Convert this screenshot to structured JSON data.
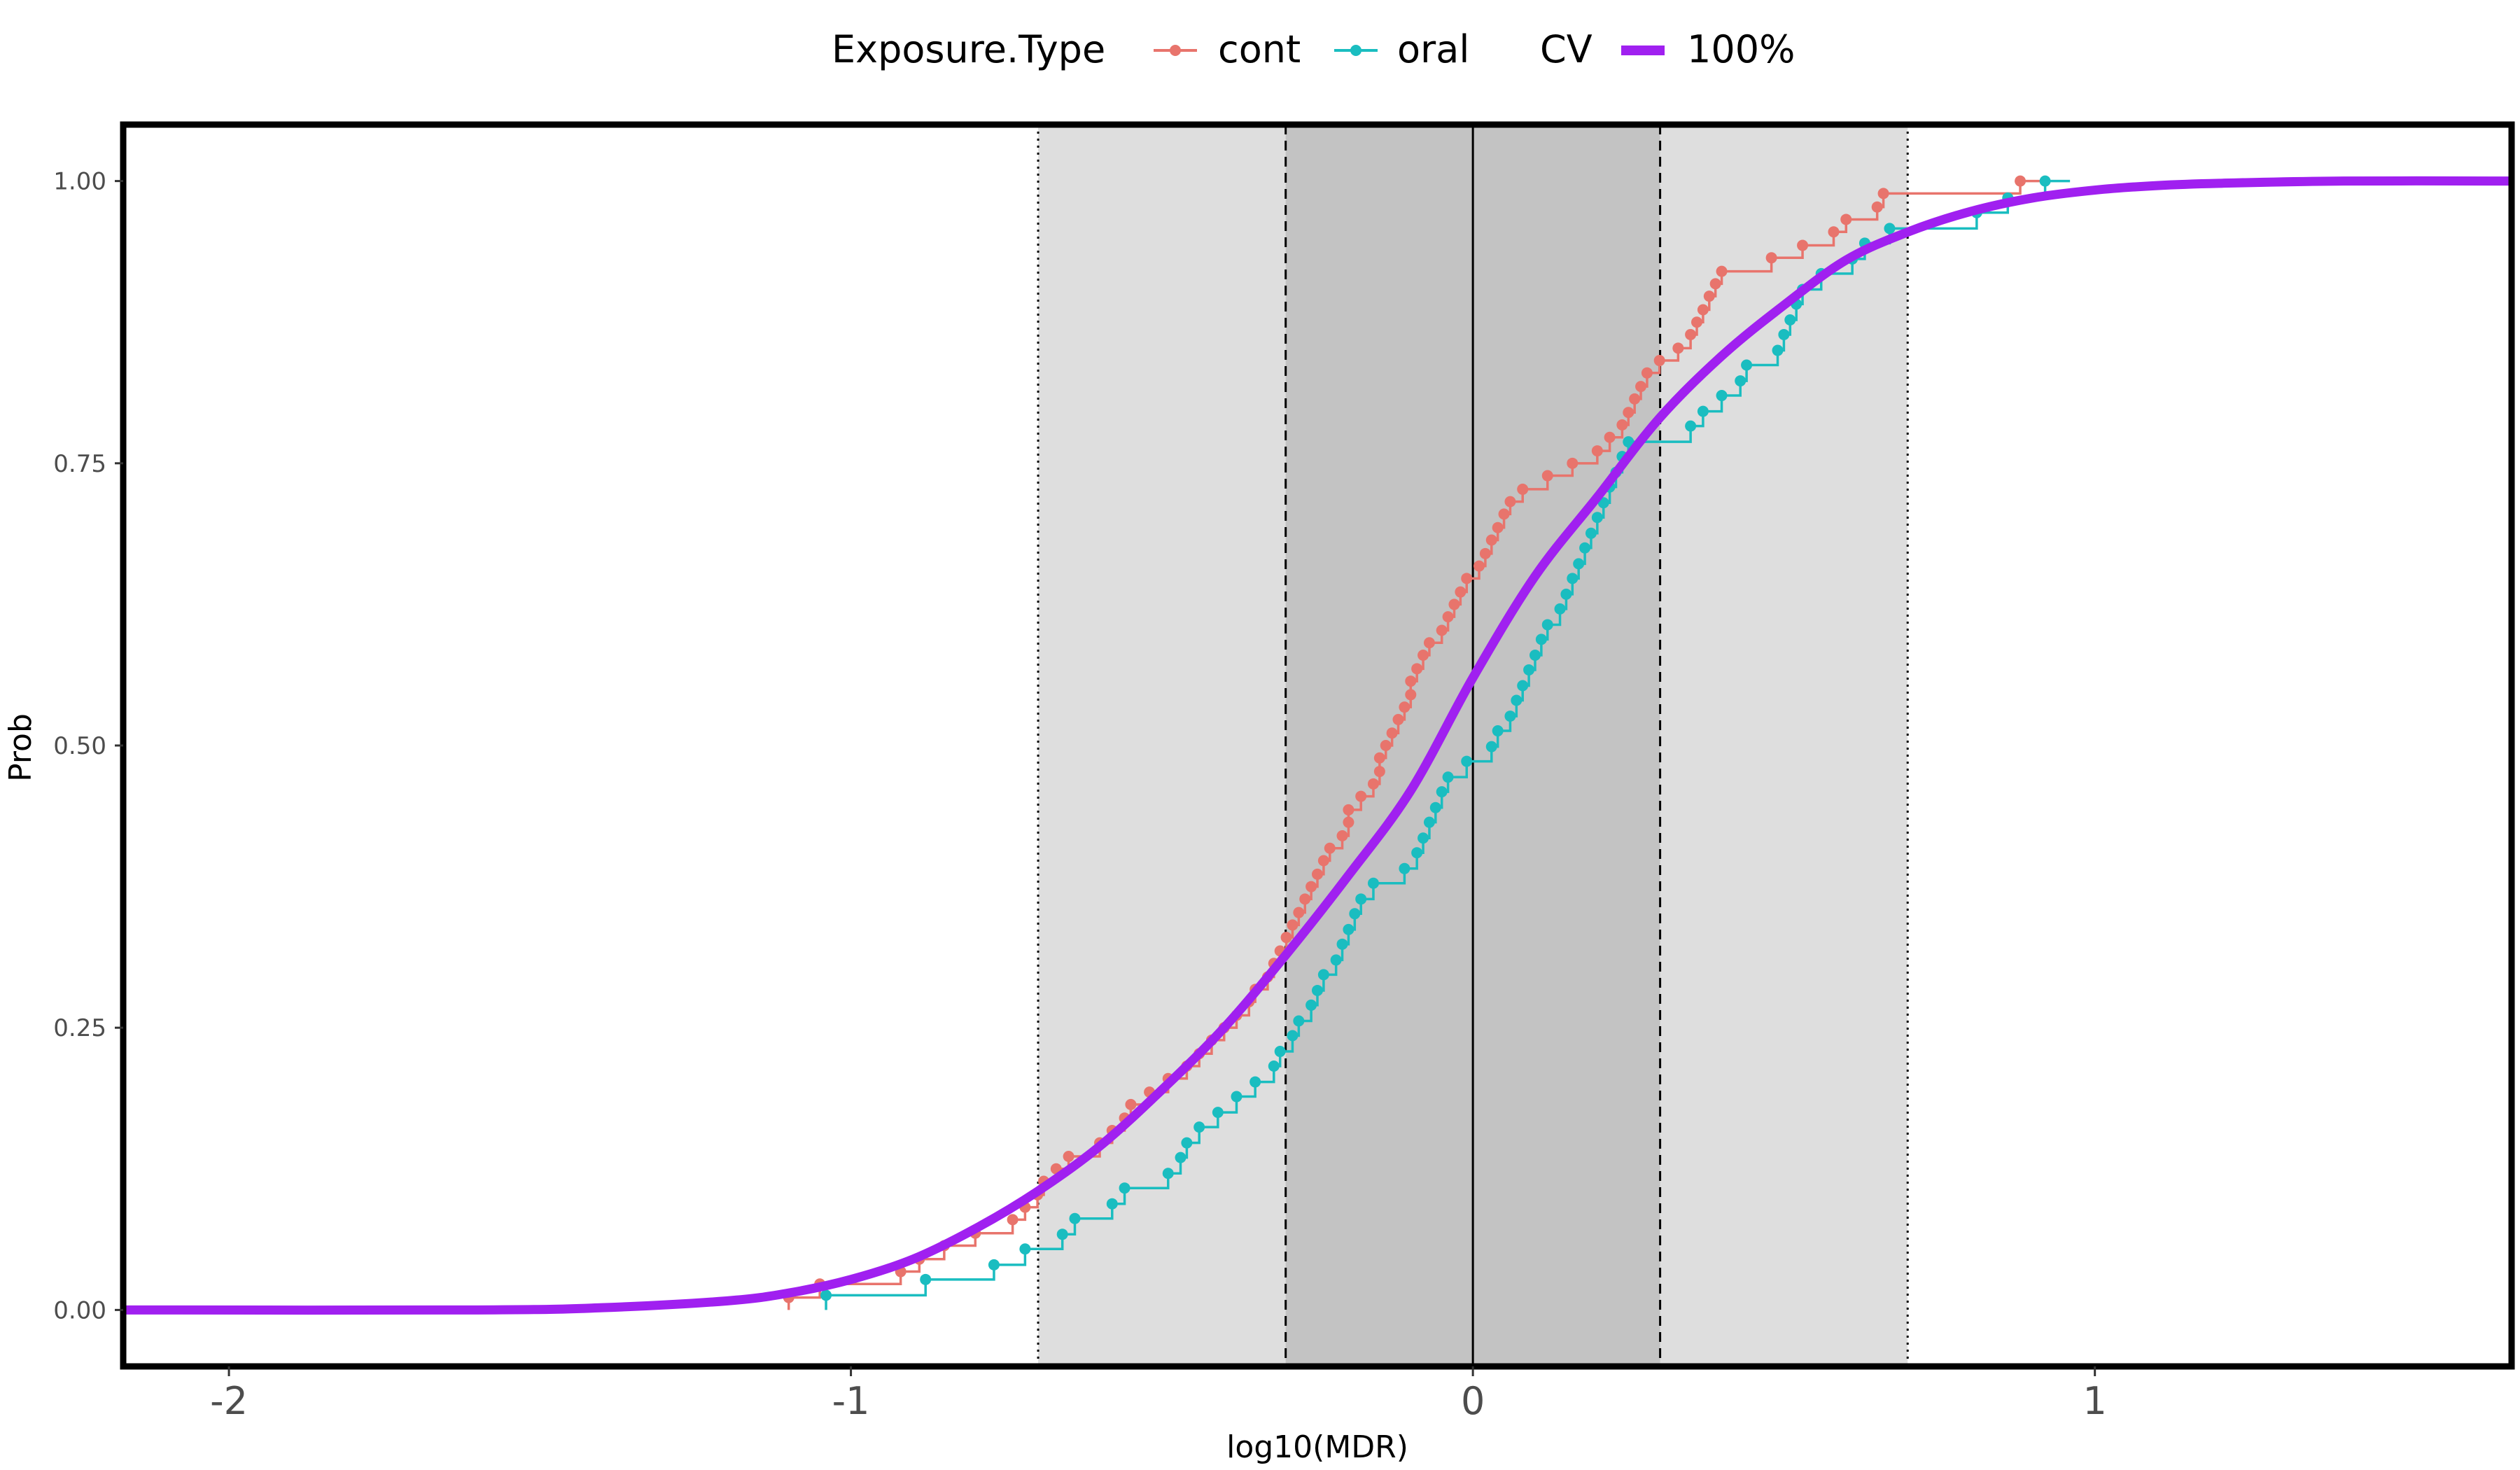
{
  "chart_data": {
    "type": "line",
    "xlabel": "log10(MDR)",
    "ylabel": "Prob",
    "xlim": [
      -2.17,
      1.67
    ],
    "ylim": [
      -0.05,
      1.05
    ],
    "x_ticks": [
      {
        "value": -2,
        "label": "-2"
      },
      {
        "value": -1,
        "label": "-1"
      },
      {
        "value": 0,
        "label": "0"
      },
      {
        "value": 1,
        "label": "1"
      }
    ],
    "y_ticks": [
      {
        "value": 0,
        "label": "0.00"
      },
      {
        "value": 0.25,
        "label": "0.25"
      },
      {
        "value": 0.5,
        "label": "0.50"
      },
      {
        "value": 0.75,
        "label": "0.75"
      },
      {
        "value": 1,
        "label": "1.00"
      }
    ],
    "grid": false,
    "legend_position": "top",
    "bands": [
      {
        "xmin": -0.699,
        "xmax": 0.699,
        "color": "#dedede"
      },
      {
        "xmin": -0.301,
        "xmax": 0.301,
        "color": "#c3c3c3"
      }
    ],
    "vlines": [
      {
        "x": -0.699,
        "style": "dotted"
      },
      {
        "x": 0.699,
        "style": "dotted"
      },
      {
        "x": -0.301,
        "style": "dashed"
      },
      {
        "x": 0.301,
        "style": "dashed"
      },
      {
        "x": 0,
        "style": "solid"
      }
    ],
    "legend": {
      "group1_title": "Exposure.Type",
      "group2_title": "CV"
    },
    "series": [
      {
        "name": "cont",
        "kind": "ecdf",
        "color": "#e8746c",
        "x": [
          -1.1,
          -1.05,
          -0.92,
          -0.89,
          -0.85,
          -0.8,
          -0.74,
          -0.72,
          -0.7,
          -0.69,
          -0.67,
          -0.65,
          -0.6,
          -0.58,
          -0.56,
          -0.55,
          -0.52,
          -0.49,
          -0.46,
          -0.44,
          -0.42,
          -0.4,
          -0.38,
          -0.36,
          -0.35,
          -0.33,
          -0.32,
          -0.31,
          -0.3,
          -0.29,
          -0.28,
          -0.27,
          -0.26,
          -0.25,
          -0.24,
          -0.23,
          -0.21,
          -0.2,
          -0.2,
          -0.18,
          -0.16,
          -0.15,
          -0.15,
          -0.14,
          -0.13,
          -0.12,
          -0.11,
          -0.1,
          -0.1,
          -0.09,
          -0.08,
          -0.07,
          -0.05,
          -0.04,
          -0.03,
          -0.02,
          -0.01,
          0.01,
          0.02,
          0.03,
          0.04,
          0.05,
          0.06,
          0.08,
          0.12,
          0.16,
          0.2,
          0.22,
          0.24,
          0.25,
          0.26,
          0.27,
          0.28,
          0.3,
          0.33,
          0.35,
          0.36,
          0.37,
          0.38,
          0.39,
          0.4,
          0.48,
          0.53,
          0.58,
          0.6,
          0.65,
          0.66,
          0.88
        ],
        "y": [
          0.011,
          0.023,
          0.034,
          0.045,
          0.057,
          0.068,
          0.08,
          0.091,
          0.102,
          0.114,
          0.125,
          0.136,
          0.148,
          0.159,
          0.17,
          0.182,
          0.193,
          0.205,
          0.216,
          0.227,
          0.239,
          0.25,
          0.261,
          0.273,
          0.284,
          0.295,
          0.307,
          0.318,
          0.33,
          0.341,
          0.352,
          0.364,
          0.375,
          0.386,
          0.398,
          0.409,
          0.42,
          0.432,
          0.443,
          0.455,
          0.466,
          0.477,
          0.489,
          0.5,
          0.511,
          0.523,
          0.534,
          0.545,
          0.557,
          0.568,
          0.58,
          0.591,
          0.602,
          0.614,
          0.625,
          0.636,
          0.648,
          0.659,
          0.67,
          0.682,
          0.693,
          0.705,
          0.716,
          0.727,
          0.739,
          0.75,
          0.761,
          0.773,
          0.784,
          0.795,
          0.807,
          0.818,
          0.83,
          0.841,
          0.852,
          0.864,
          0.875,
          0.886,
          0.898,
          0.909,
          0.92,
          0.932,
          0.943,
          0.955,
          0.966,
          0.977,
          0.989,
          1.0
        ]
      },
      {
        "name": "oral",
        "kind": "ecdf",
        "color": "#1abdc0",
        "x": [
          -1.04,
          -0.88,
          -0.77,
          -0.72,
          -0.66,
          -0.64,
          -0.58,
          -0.56,
          -0.49,
          -0.47,
          -0.46,
          -0.44,
          -0.41,
          -0.38,
          -0.35,
          -0.32,
          -0.31,
          -0.29,
          -0.28,
          -0.26,
          -0.25,
          -0.24,
          -0.22,
          -0.21,
          -0.2,
          -0.19,
          -0.18,
          -0.16,
          -0.11,
          -0.09,
          -0.08,
          -0.07,
          -0.06,
          -0.05,
          -0.04,
          -0.01,
          0.03,
          0.04,
          0.06,
          0.07,
          0.08,
          0.09,
          0.1,
          0.11,
          0.12,
          0.14,
          0.15,
          0.16,
          0.17,
          0.18,
          0.19,
          0.2,
          0.21,
          0.22,
          0.23,
          0.24,
          0.25,
          0.35,
          0.37,
          0.4,
          0.43,
          0.44,
          0.49,
          0.5,
          0.51,
          0.52,
          0.53,
          0.56,
          0.61,
          0.63,
          0.67,
          0.81,
          0.86,
          0.92
        ],
        "y": [
          0.013,
          0.027,
          0.04,
          0.054,
          0.067,
          0.081,
          0.094,
          0.108,
          0.121,
          0.135,
          0.148,
          0.162,
          0.175,
          0.189,
          0.202,
          0.216,
          0.229,
          0.243,
          0.256,
          0.27,
          0.283,
          0.297,
          0.31,
          0.324,
          0.337,
          0.351,
          0.364,
          0.378,
          0.391,
          0.405,
          0.418,
          0.432,
          0.445,
          0.459,
          0.472,
          0.486,
          0.499,
          0.513,
          0.526,
          0.54,
          0.553,
          0.567,
          0.58,
          0.594,
          0.607,
          0.621,
          0.634,
          0.648,
          0.661,
          0.675,
          0.688,
          0.702,
          0.715,
          0.729,
          0.742,
          0.756,
          0.769,
          0.783,
          0.796,
          0.81,
          0.823,
          0.837,
          0.85,
          0.864,
          0.877,
          0.891,
          0.904,
          0.918,
          0.931,
          0.945,
          0.958,
          0.972,
          0.985,
          1.0
        ]
      },
      {
        "name": "100%",
        "kind": "fit",
        "color": "#a020f0",
        "x": [
          -2.17,
          -1.6,
          -1.4,
          -1.2,
          -1.1,
          -1.0,
          -0.9,
          -0.8,
          -0.7,
          -0.6,
          -0.5,
          -0.4,
          -0.3,
          -0.2,
          -0.1,
          0.0,
          0.1,
          0.2,
          0.3,
          0.4,
          0.5,
          0.6,
          0.7,
          0.8,
          0.9,
          1.0,
          1.1,
          1.2,
          1.4,
          1.67
        ],
        "y": [
          0.0,
          0.0,
          0.002,
          0.008,
          0.015,
          0.027,
          0.045,
          0.072,
          0.105,
          0.145,
          0.195,
          0.25,
          0.315,
          0.385,
          0.46,
          0.56,
          0.65,
          0.72,
          0.79,
          0.845,
          0.89,
          0.93,
          0.955,
          0.973,
          0.985,
          0.992,
          0.996,
          0.998,
          1.0,
          1.0
        ]
      }
    ]
  }
}
